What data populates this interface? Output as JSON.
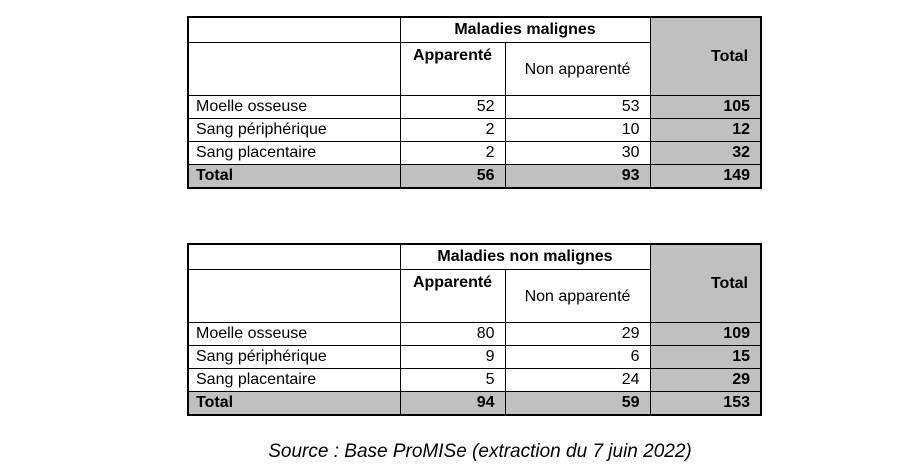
{
  "tables": [
    {
      "group_header": "Maladies malignes",
      "col_apparente": "Apparenté",
      "col_non_apparente": "Non apparenté",
      "col_total": "Total",
      "rows": [
        {
          "label": "Moelle osseuse",
          "apparente": "52",
          "non_apparente": "53",
          "total": "105"
        },
        {
          "label": "Sang périphérique",
          "apparente": "2",
          "non_apparente": "10",
          "total": "12"
        },
        {
          "label": "Sang placentaire",
          "apparente": "2",
          "non_apparente": "30",
          "total": "32"
        }
      ],
      "total_row": {
        "label": "Total",
        "apparente": "56",
        "non_apparente": "93",
        "total": "149"
      }
    },
    {
      "group_header": "Maladies non malignes",
      "col_apparente": "Apparenté",
      "col_non_apparente": "Non apparenté",
      "col_total": "Total",
      "rows": [
        {
          "label": "Moelle osseuse",
          "apparente": "80",
          "non_apparente": "29",
          "total": "109"
        },
        {
          "label": "Sang périphérique",
          "apparente": "9",
          "non_apparente": "6",
          "total": "15"
        },
        {
          "label": "Sang placentaire",
          "apparente": "5",
          "non_apparente": "24",
          "total": "29"
        }
      ],
      "total_row": {
        "label": "Total",
        "apparente": "94",
        "non_apparente": "59",
        "total": "153"
      }
    }
  ],
  "source": "Source : Base ProMISe (extraction du 7 juin 2022)",
  "colors": {
    "shade": "#c0c0c0",
    "border": "#000000"
  }
}
